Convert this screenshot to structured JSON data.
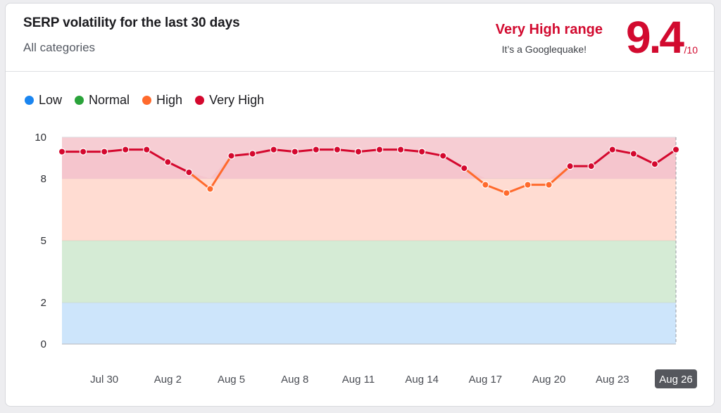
{
  "header": {
    "title": "SERP volatility for the last 30 days",
    "subtitle": "All categories",
    "range_label": "Very High range",
    "range_note": "It’s a Googlequake!",
    "score": "9.4",
    "score_max": "/10"
  },
  "legend": [
    {
      "label": "Low",
      "color": "#1a85f0"
    },
    {
      "label": "Normal",
      "color": "#2aa33a"
    },
    {
      "label": "High",
      "color": "#ff6a2c"
    },
    {
      "label": "Very High",
      "color": "#d4082e"
    }
  ],
  "chart_data": {
    "type": "line",
    "title": "SERP volatility for the last 30 days",
    "ylim": [
      0,
      10
    ],
    "yticks": [
      0,
      2,
      5,
      8,
      10
    ],
    "bands": [
      {
        "name": "Low",
        "from": 0,
        "to": 2,
        "color": "#cde5fb"
      },
      {
        "name": "Normal",
        "from": 2,
        "to": 5,
        "color": "#d5ebd5"
      },
      {
        "name": "High",
        "from": 5,
        "to": 8,
        "color": "#ffdcd2"
      },
      {
        "name": "Very High",
        "from": 8,
        "to": 10,
        "color": "#f6cdd3"
      }
    ],
    "x": [
      "Jul 28",
      "Jul 29",
      "Jul 30",
      "Jul 31",
      "Aug 1",
      "Aug 2",
      "Aug 3",
      "Aug 4",
      "Aug 5",
      "Aug 6",
      "Aug 7",
      "Aug 8",
      "Aug 9",
      "Aug 10",
      "Aug 11",
      "Aug 12",
      "Aug 13",
      "Aug 14",
      "Aug 15",
      "Aug 16",
      "Aug 17",
      "Aug 18",
      "Aug 19",
      "Aug 20",
      "Aug 21",
      "Aug 22",
      "Aug 23",
      "Aug 24",
      "Aug 25",
      "Aug 26"
    ],
    "xtick_labels": [
      "Jul 30",
      "Aug 2",
      "Aug 5",
      "Aug 8",
      "Aug 11",
      "Aug 14",
      "Aug 17",
      "Aug 20",
      "Aug 23",
      "Aug 26"
    ],
    "highlight": "Aug 26",
    "series": [
      {
        "values": [
          9.3,
          9.3,
          9.3,
          9.4,
          9.4,
          8.8,
          8.3,
          7.5,
          9.1,
          9.2,
          9.4,
          9.3,
          9.4,
          9.4,
          9.3,
          9.4,
          9.4,
          9.3,
          9.1,
          8.5,
          7.7,
          7.3,
          7.7,
          7.7,
          8.6,
          8.6,
          9.4,
          9.2,
          8.7,
          9.4
        ]
      }
    ]
  }
}
